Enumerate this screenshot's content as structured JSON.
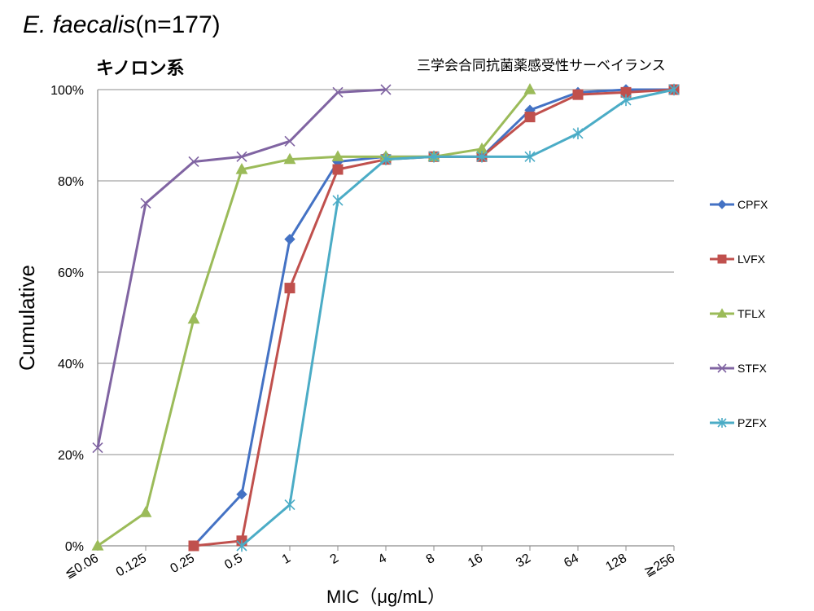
{
  "header": {
    "title_species": "E. faecalis",
    "title_count": "(n=177)",
    "subtitle": "キノロン系",
    "source": "三学会合同抗菌薬感受性サーベイランス"
  },
  "chart_data": {
    "type": "line",
    "xlabel": "MIC（μg/mL）",
    "ylabel": "Cumulative",
    "categories": [
      "≦0.06",
      "0.125",
      "0.25",
      "0.5",
      "1",
      "2",
      "4",
      "8",
      "16",
      "32",
      "64",
      "128",
      "≧256"
    ],
    "y_ticks": [
      "0%",
      "20%",
      "40%",
      "60%",
      "80%",
      "100%"
    ],
    "ylim": [
      0,
      100
    ],
    "grid": true,
    "legend_position": "right",
    "series": [
      {
        "name": "CPFX",
        "color": "#4472C4",
        "marker": "diamond",
        "values": [
          null,
          null,
          0,
          11.3,
          67.2,
          84.2,
          85.3,
          85.3,
          85.3,
          95.5,
          99.4,
          100,
          100
        ]
      },
      {
        "name": "LVFX",
        "color": "#C0504D",
        "marker": "square",
        "values": [
          null,
          null,
          0,
          1.1,
          56.5,
          82.5,
          84.7,
          85.3,
          85.3,
          94.0,
          98.9,
          99.4,
          100
        ]
      },
      {
        "name": "TFLX",
        "color": "#9BBB59",
        "marker": "triangle",
        "values": [
          0,
          7.3,
          49.7,
          82.5,
          84.7,
          85.3,
          85.3,
          85.3,
          87.0,
          100,
          null,
          null,
          null
        ]
      },
      {
        "name": "STFX",
        "color": "#8064A2",
        "marker": "x",
        "values": [
          21.5,
          75.1,
          84.2,
          85.3,
          88.7,
          99.4,
          100,
          null,
          null,
          null,
          null,
          null,
          null
        ]
      },
      {
        "name": "PZFX",
        "color": "#4BACC6",
        "marker": "star",
        "values": [
          null,
          null,
          null,
          0,
          9.0,
          75.7,
          84.7,
          85.3,
          85.3,
          85.3,
          90.4,
          97.7,
          100
        ]
      }
    ]
  }
}
